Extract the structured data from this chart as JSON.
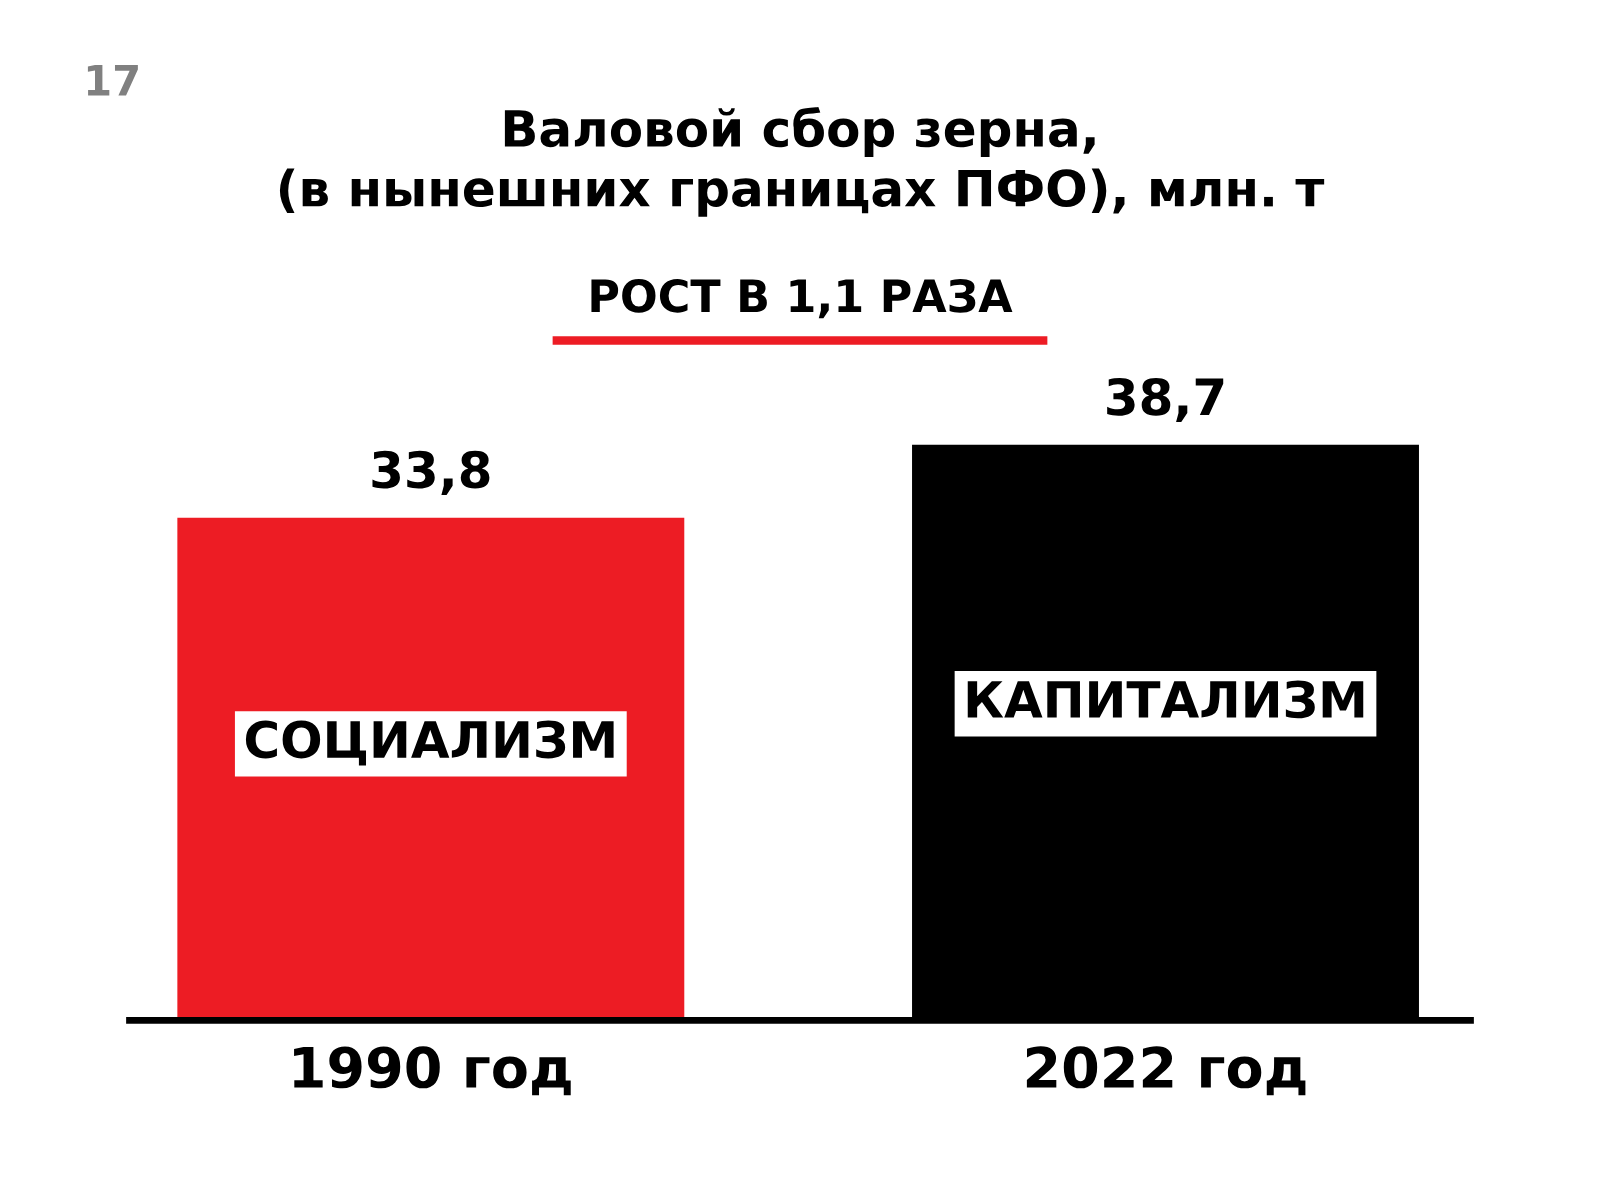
{
  "chart_data": {
    "type": "bar",
    "title": "Валовой сбор зерна,\n(в нынешних границах ПФО), млн. т",
    "subtitle": "РОСТ В 1,1 РАЗА",
    "categories": [
      "1990 год",
      "2022 год"
    ],
    "values": [
      33.8,
      38.7
    ],
    "colors": [
      "#ed1c24",
      "#000000"
    ],
    "value_labels": [
      "33,8",
      "38,7"
    ],
    "annotations": [
      "17",
      "СОЦИАЛИЗМ",
      "КАПИТАЛИЗМ"
    ]
  }
}
